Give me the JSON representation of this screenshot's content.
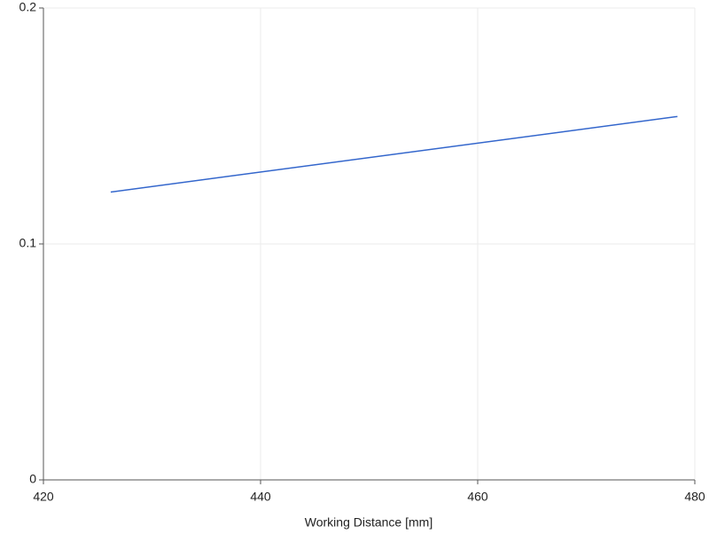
{
  "chart_data": {
    "type": "line",
    "x_label": "Working Distance [mm]",
    "x": [
      426.2,
      478.4
    ],
    "values": [
      0.122,
      0.154
    ],
    "color": "#3366cc",
    "xlim": [
      420,
      480
    ],
    "xticks": [
      420,
      440,
      460,
      480
    ],
    "ylim": [
      0,
      0.2
    ],
    "yticks": [
      0,
      0.1,
      0.2
    ],
    "grid": true
  }
}
